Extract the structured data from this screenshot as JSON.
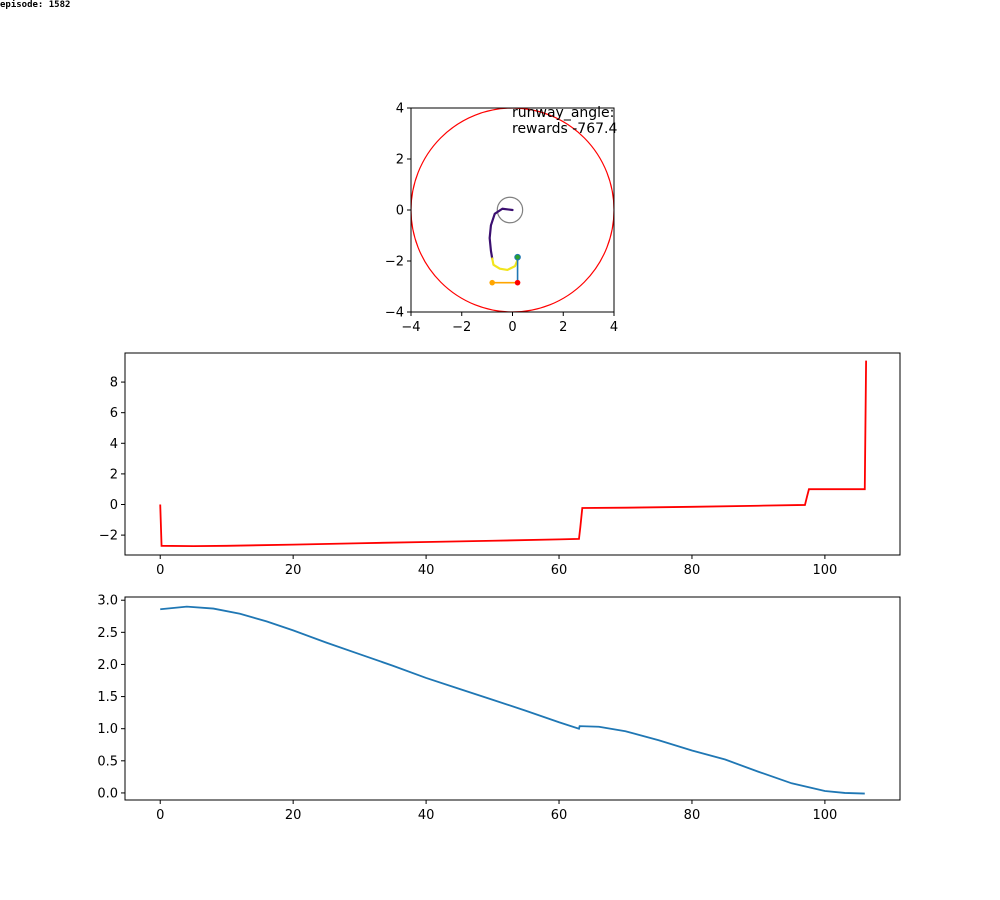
{
  "header": {
    "episode_label": "episode: 1582"
  },
  "chart_data": [
    {
      "type": "scatter",
      "name": "trajectory",
      "xlim": [
        -4,
        4
      ],
      "ylim": [
        -4,
        4
      ],
      "x_ticks": [
        "−4",
        "−2",
        "0",
        "2",
        "4"
      ],
      "y_ticks": [
        "−4",
        "−2",
        "0",
        "2",
        "4"
      ],
      "annotations": [
        "runway_angle:",
        "rewards -767.4"
      ],
      "circles": [
        {
          "center": [
            0,
            0
          ],
          "radius": 4,
          "color": "#ff0000"
        },
        {
          "center": [
            -0.1,
            0
          ],
          "radius": 0.5,
          "color": "#808080"
        }
      ],
      "paths": [
        {
          "color": "#3b0f70",
          "points": [
            [
              0.0,
              0.0
            ],
            [
              -0.4,
              0.05
            ],
            [
              -0.7,
              -0.15
            ],
            [
              -0.85,
              -0.6
            ],
            [
              -0.9,
              -1.1
            ],
            [
              -0.85,
              -1.6
            ],
            [
              -0.8,
              -1.9
            ]
          ]
        },
        {
          "color": "#f2e51d",
          "points": [
            [
              -0.8,
              -1.9
            ],
            [
              -0.75,
              -2.15
            ],
            [
              -0.5,
              -2.3
            ],
            [
              -0.2,
              -2.35
            ],
            [
              0.1,
              -2.2
            ],
            [
              0.2,
              -1.95
            ]
          ]
        }
      ],
      "segments": [
        {
          "from": [
            0.2,
            -1.85
          ],
          "to": [
            0.2,
            -2.85
          ],
          "color": "#1f77b4"
        },
        {
          "from": [
            -0.8,
            -2.85
          ],
          "to": [
            0.2,
            -2.85
          ],
          "color": "#ffa500"
        }
      ],
      "markers": [
        {
          "point": [
            0.2,
            -1.85
          ],
          "color": "#2ca02c"
        },
        {
          "point": [
            0.2,
            -2.85
          ],
          "color": "#ff0000"
        },
        {
          "point": [
            -0.8,
            -2.85
          ],
          "color": "#ffa500"
        }
      ]
    },
    {
      "type": "line",
      "name": "rewards",
      "color": "#ff0000",
      "xlim": [
        -5.3,
        111.3
      ],
      "ylim": [
        -3.3,
        9.9
      ],
      "x_ticks": [
        "0",
        "20",
        "40",
        "60",
        "80",
        "100"
      ],
      "y_ticks": [
        "−2",
        "0",
        "2",
        "4",
        "6",
        "8"
      ],
      "x": [
        0,
        0.2,
        5,
        10,
        20,
        30,
        40,
        50,
        60,
        63,
        63.2,
        63.5,
        70,
        80,
        90,
        97,
        97.3,
        97.6,
        100,
        105,
        106,
        106.2
      ],
      "y": [
        0,
        -2.7,
        -2.72,
        -2.7,
        -2.62,
        -2.53,
        -2.45,
        -2.37,
        -2.28,
        -2.25,
        -1.5,
        -0.23,
        -0.21,
        -0.15,
        -0.08,
        -0.03,
        0.5,
        1.0,
        1.0,
        1.0,
        1.0,
        9.4
      ]
    },
    {
      "type": "line",
      "name": "distance",
      "color": "#1f77b4",
      "xlim": [
        -5.3,
        111.3
      ],
      "ylim": [
        -0.11,
        3.05
      ],
      "x_ticks": [
        "0",
        "20",
        "40",
        "60",
        "80",
        "100"
      ],
      "y_ticks": [
        "0.0",
        "0.5",
        "1.0",
        "1.5",
        "2.0",
        "2.5",
        "3.0"
      ],
      "x": [
        0,
        4,
        8,
        12,
        16,
        20,
        25,
        30,
        35,
        40,
        45,
        50,
        55,
        60,
        63,
        63.1,
        66,
        70,
        75,
        80,
        85,
        90,
        95,
        100,
        103,
        106
      ],
      "y": [
        2.86,
        2.9,
        2.87,
        2.79,
        2.67,
        2.53,
        2.34,
        2.16,
        1.98,
        1.79,
        1.62,
        1.45,
        1.28,
        1.1,
        1.0,
        1.04,
        1.03,
        0.96,
        0.82,
        0.66,
        0.52,
        0.33,
        0.15,
        0.03,
        0.0,
        -0.01
      ]
    }
  ]
}
